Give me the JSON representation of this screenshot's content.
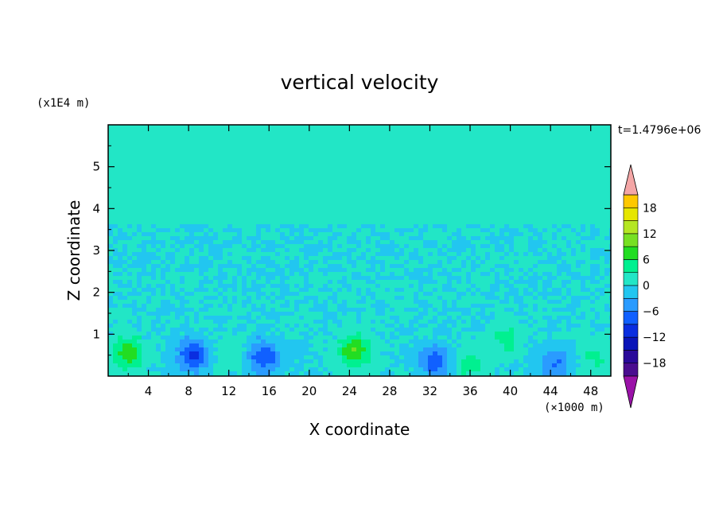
{
  "chart_data": {
    "type": "heatmap",
    "title": "vertical velocity",
    "xlabel": "X coordinate",
    "ylabel": "Z coordinate",
    "x_unit": "(×1000 m)",
    "y_unit": "(x1E4 m)",
    "time_label": "t=1.4796e+06",
    "xlim": [
      0,
      50
    ],
    "ylim": [
      0,
      6
    ],
    "x_ticks": [
      "4",
      "8",
      "12",
      "16",
      "20",
      "24",
      "28",
      "32",
      "36",
      "40",
      "44",
      "48"
    ],
    "y_ticks": [
      "1",
      "2",
      "3",
      "4",
      "5"
    ],
    "colorbar": {
      "tick_labels": [
        "18",
        "12",
        "6",
        "0",
        "−6",
        "−12",
        "−18"
      ],
      "ticks": [
        18,
        12,
        6,
        0,
        -6,
        -12,
        -18
      ],
      "range": [
        -21,
        21
      ],
      "step": 3,
      "colors": [
        "#4a0d8f",
        "#2a0a9a",
        "#0a14b8",
        "#0a2ee0",
        "#1060ff",
        "#2a9bff",
        "#22c6f0",
        "#22e6c6",
        "#00f090",
        "#22dd22",
        "#77e022",
        "#b5e622",
        "#e6e600",
        "#ffc800",
        "#ffa000",
        "#ff7000",
        "#ff4010",
        "#ff1a10",
        "#dd0000",
        "#ffaaaa",
        "#9a12a8"
      ],
      "over_color": "#f4a6a6",
      "under_color": "#9a12a8"
    },
    "background_level": 0,
    "features": [
      {
        "kind": "updraft",
        "x": 2.0,
        "z": 0.55,
        "max": 8
      },
      {
        "kind": "updraft",
        "x": 24.5,
        "z": 0.6,
        "max": 9
      },
      {
        "kind": "updraft",
        "x": 12.0,
        "z": 0.55,
        "max": 3
      },
      {
        "kind": "updraft",
        "x": 36.0,
        "z": 0.25,
        "max": 4
      },
      {
        "kind": "updraft",
        "x": 48.5,
        "z": 0.45,
        "max": 4
      },
      {
        "kind": "updraft",
        "x": 39.5,
        "z": 0.85,
        "max": 4
      },
      {
        "kind": "downdraft",
        "x": 8.5,
        "z": 0.5,
        "min": -10
      },
      {
        "kind": "downdraft",
        "x": 15.5,
        "z": 0.45,
        "min": -9
      },
      {
        "kind": "downdraft",
        "x": 32.5,
        "z": 0.35,
        "min": -8
      },
      {
        "kind": "downdraft",
        "x": 44.5,
        "z": 0.3,
        "min": -6
      }
    ]
  }
}
